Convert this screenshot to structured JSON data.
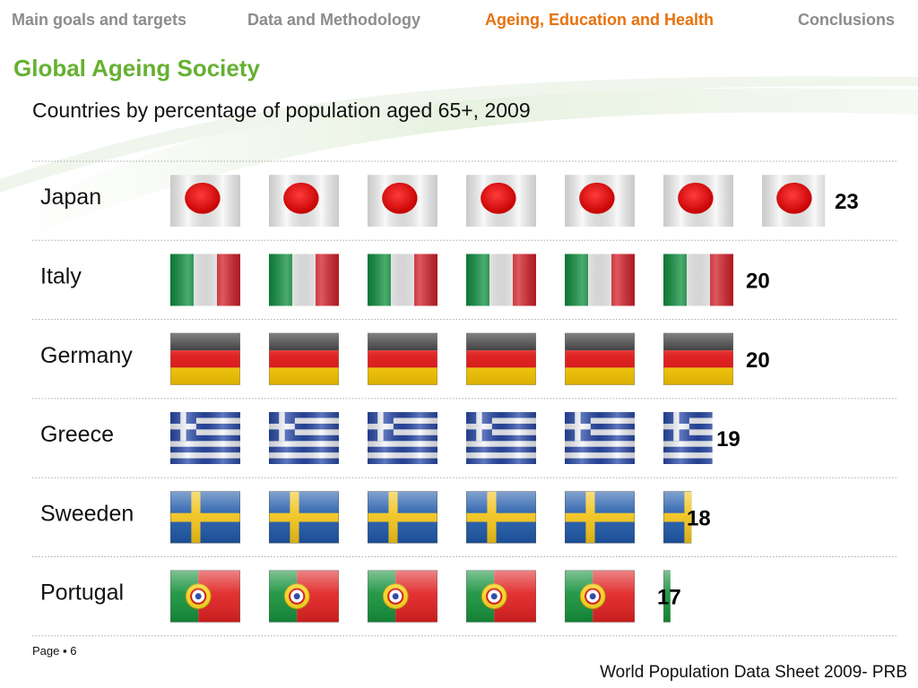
{
  "nav": {
    "items": [
      {
        "label": "Main goals and targets",
        "active": false
      },
      {
        "label": "Data and Methodology",
        "active": false
      },
      {
        "label": "Ageing, Education and Health",
        "active": true
      },
      {
        "label": "Conclusions",
        "active": false
      }
    ]
  },
  "slide": {
    "title": "Global Ageing Society",
    "subtitle": "Countries by percentage of population aged 65+, 2009"
  },
  "footer": {
    "page_label": "Page ▪ 6",
    "source": "World Population Data Sheet  2009- PRB"
  },
  "colors": {
    "title_green": "#66b032",
    "nav_active": "#e8720c",
    "nav_inactive": "#8c8c8c"
  },
  "chart_data": {
    "type": "bar",
    "subtype": "pictograph",
    "title": "Countries by percentage of population aged 65+, 2009",
    "flag_icons": [
      "japan-flag-icon",
      "italy-flag-icon",
      "germany-flag-icon",
      "greece-flag-icon",
      "sweden-flag-icon",
      "portugal-flag-icon"
    ],
    "categories": [
      "Japan",
      "Italy",
      "Germany",
      "Greece",
      "Sweeden",
      "Portugal"
    ],
    "values": [
      23,
      20,
      20,
      19,
      18,
      17
    ],
    "value_labels": [
      "23",
      "20",
      "20",
      "19",
      "18",
      "17"
    ],
    "units_per_icon": 3.333,
    "grid": true
  }
}
